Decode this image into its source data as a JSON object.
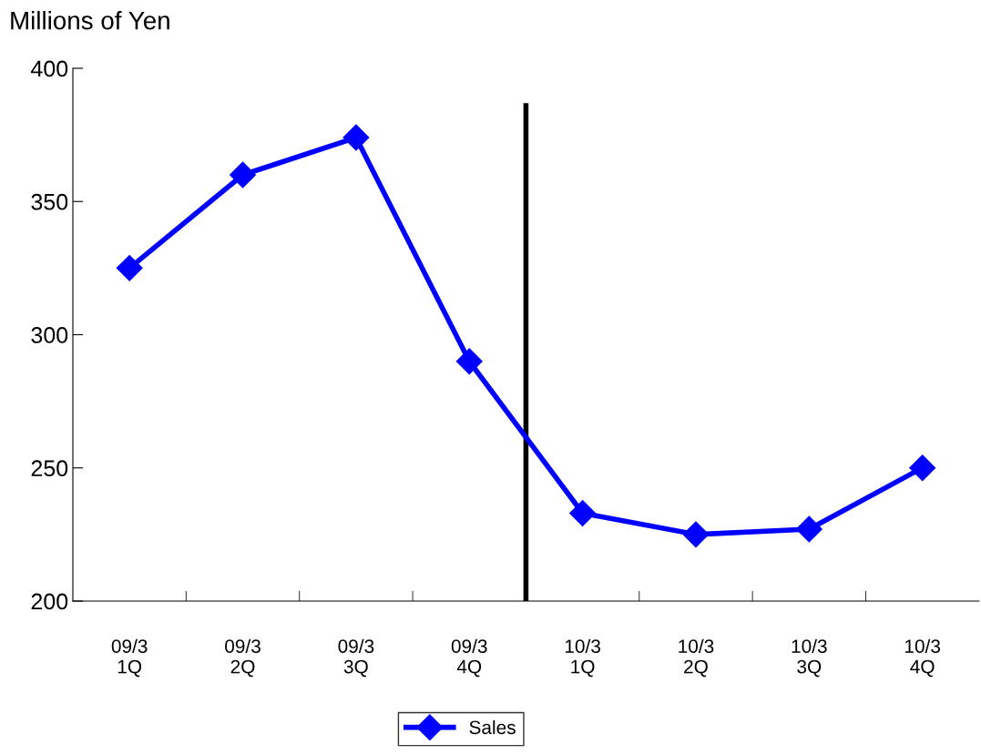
{
  "chart_data": {
    "type": "line",
    "ylabel": "Millions of Yen",
    "categories": [
      "09/3\n1Q",
      "09/3\n2Q",
      "09/3\n3Q",
      "09/3\n4Q",
      "10/3\n1Q",
      "10/3\n2Q",
      "10/3\n3Q",
      "10/3\n4Q"
    ],
    "series": [
      {
        "name": "Sales",
        "color": "#0000ff",
        "values": [
          325,
          360,
          374,
          290,
          233,
          225,
          227,
          250
        ]
      }
    ],
    "ylim": [
      200,
      400
    ],
    "yticks": [
      200,
      250,
      300,
      350,
      400
    ],
    "marker": "diamond",
    "line_style": "solid",
    "grid": false,
    "legend": "bottom"
  }
}
